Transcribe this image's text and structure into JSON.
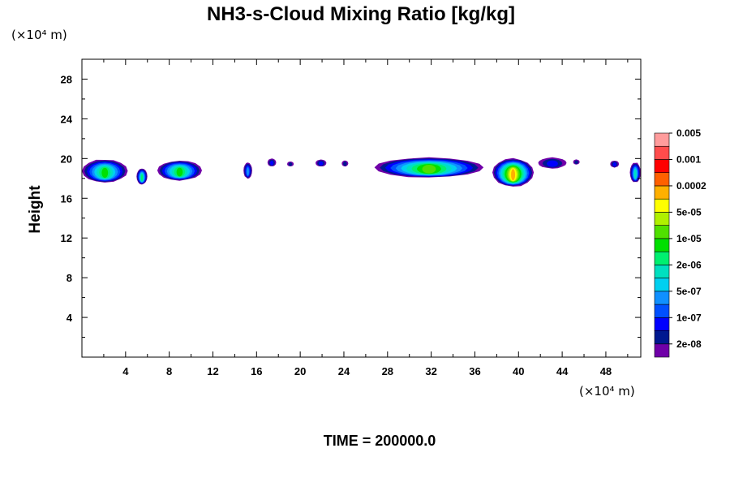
{
  "chart_data": {
    "type": "contour",
    "title": "NH3-s-Cloud Mixing Ratio [kg/kg]",
    "ylabel": "Height",
    "x_unit_label": "(×10⁴ m)",
    "y_unit_label": "(×10⁴ m)",
    "xlim": [
      0,
      51.2
    ],
    "ylim": [
      0,
      30
    ],
    "x_ticks": [
      4,
      8,
      12,
      16,
      20,
      24,
      28,
      32,
      36,
      40,
      44,
      48
    ],
    "x_tick_labels": [
      "4",
      "8",
      "12",
      "16",
      "20",
      "24",
      "28",
      "32",
      "36",
      "40",
      "44",
      "48"
    ],
    "y_ticks": [
      4,
      8,
      12,
      16,
      20,
      24,
      28
    ],
    "y_tick_labels": [
      "4",
      "8",
      "12",
      "16",
      "20",
      "24",
      "28"
    ],
    "colorbar": {
      "colors": [
        "#7000a8",
        "#001890",
        "#0000ff",
        "#0050ff",
        "#1090ff",
        "#00d0f0",
        "#00e0c0",
        "#00f070",
        "#00e000",
        "#50e000",
        "#b0f000",
        "#ffff00",
        "#ffb000",
        "#ff6000",
        "#ff0000",
        "#ff4c4c",
        "#ff9c9c"
      ],
      "labels": [
        "2e-08",
        "1e-07",
        "5e-07",
        "2e-06",
        "1e-05",
        "5e-05",
        "0.0002",
        "0.001",
        "0.005"
      ]
    },
    "cloud_regions": [
      {
        "x0": 0,
        "x1": 4.2,
        "ybot": 17.6,
        "ytop": 19.9,
        "peak": 8
      },
      {
        "x0": 5.0,
        "x1": 6.0,
        "ybot": 17.4,
        "ytop": 19.0,
        "peak": 7
      },
      {
        "x0": 6.9,
        "x1": 11.0,
        "ybot": 17.8,
        "ytop": 19.8,
        "peak": 8
      },
      {
        "x0": 14.8,
        "x1": 15.6,
        "ybot": 18.0,
        "ytop": 19.6,
        "peak": 4
      },
      {
        "x0": 17.0,
        "x1": 17.8,
        "ybot": 19.2,
        "ytop": 20.0,
        "peak": 2
      },
      {
        "x0": 18.8,
        "x1": 19.4,
        "ybot": 19.2,
        "ytop": 19.7,
        "peak": 1
      },
      {
        "x0": 21.4,
        "x1": 22.4,
        "ybot": 19.2,
        "ytop": 19.9,
        "peak": 2
      },
      {
        "x0": 23.8,
        "x1": 24.4,
        "ybot": 19.2,
        "ytop": 19.8,
        "peak": 1
      },
      {
        "x0": 26.8,
        "x1": 36.8,
        "ybot": 18.1,
        "ytop": 20.1,
        "peak": 9
      },
      {
        "x0": 37.6,
        "x1": 41.4,
        "ybot": 17.2,
        "ytop": 20.0,
        "peak": 12
      },
      {
        "x0": 41.8,
        "x1": 44.4,
        "ybot": 19.0,
        "ytop": 20.1,
        "peak": 2
      },
      {
        "x0": 45.0,
        "x1": 45.6,
        "ybot": 19.4,
        "ytop": 19.9,
        "peak": 1
      },
      {
        "x0": 48.4,
        "x1": 49.2,
        "ybot": 19.1,
        "ytop": 19.8,
        "peak": 2
      },
      {
        "x0": 50.2,
        "x1": 51.2,
        "ybot": 17.6,
        "ytop": 19.6,
        "peak": 6
      }
    ]
  },
  "time_label": "TIME = 200000.0"
}
